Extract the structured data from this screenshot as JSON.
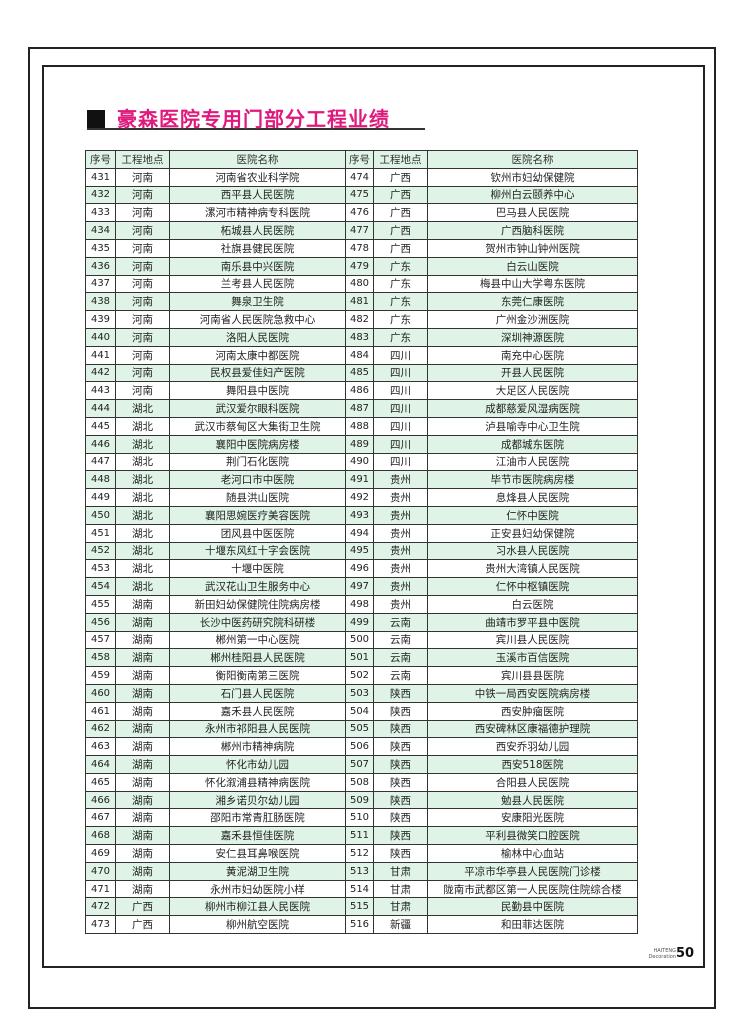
{
  "title": "豪森医院专用门部分工程业绩",
  "headers": [
    "序号",
    "工程地点",
    "医院名称",
    "序号",
    "工程地点",
    "医院名称"
  ],
  "left": [
    [
      "431",
      "河南",
      "河南省农业科学院"
    ],
    [
      "432",
      "河南",
      "西平县人民医院"
    ],
    [
      "433",
      "河南",
      "漯河市精神病专科医院"
    ],
    [
      "434",
      "河南",
      "柘城县人民医院"
    ],
    [
      "435",
      "河南",
      "社旗县健民医院"
    ],
    [
      "436",
      "河南",
      "南乐县中兴医院"
    ],
    [
      "437",
      "河南",
      "兰考县人民医院"
    ],
    [
      "438",
      "河南",
      "舞泉卫生院"
    ],
    [
      "439",
      "河南",
      "河南省人民医院急救中心"
    ],
    [
      "440",
      "河南",
      "洛阳人民医院"
    ],
    [
      "441",
      "河南",
      "河南太康中都医院"
    ],
    [
      "442",
      "河南",
      "民权县爱佳妇产医院"
    ],
    [
      "443",
      "河南",
      "舞阳县中医院"
    ],
    [
      "444",
      "湖北",
      "武汉爱尔眼科医院"
    ],
    [
      "445",
      "湖北",
      "武汉市蔡甸区大集街卫生院"
    ],
    [
      "446",
      "湖北",
      "襄阳中医院病房楼"
    ],
    [
      "447",
      "湖北",
      "荆门石化医院"
    ],
    [
      "448",
      "湖北",
      "老河口市中医院"
    ],
    [
      "449",
      "湖北",
      "随县洪山医院"
    ],
    [
      "450",
      "湖北",
      "襄阳思婉医疗美容医院"
    ],
    [
      "451",
      "湖北",
      "团风县中医医院"
    ],
    [
      "452",
      "湖北",
      "十堰东风红十字会医院"
    ],
    [
      "453",
      "湖北",
      "十堰中医院"
    ],
    [
      "454",
      "湖北",
      "武汉花山卫生服务中心"
    ],
    [
      "455",
      "湖南",
      "新田妇幼保健院住院病房楼"
    ],
    [
      "456",
      "湖南",
      "长沙中医药研究院科研楼"
    ],
    [
      "457",
      "湖南",
      "郴州第一中心医院"
    ],
    [
      "458",
      "湖南",
      "郴州桂阳县人民医院"
    ],
    [
      "459",
      "湖南",
      "衡阳衡南第三医院"
    ],
    [
      "460",
      "湖南",
      "石门县人民医院"
    ],
    [
      "461",
      "湖南",
      "嘉禾县人民医院"
    ],
    [
      "462",
      "湖南",
      "永州市祁阳县人民医院"
    ],
    [
      "463",
      "湖南",
      "郴州市精神病院"
    ],
    [
      "464",
      "湖南",
      "怀化市幼儿园"
    ],
    [
      "465",
      "湖南",
      "怀化溆浦县精神病医院"
    ],
    [
      "466",
      "湖南",
      "湘乡诺贝尔幼儿园"
    ],
    [
      "467",
      "湖南",
      "邵阳市常青肛肠医院"
    ],
    [
      "468",
      "湖南",
      "嘉禾县恒佳医院"
    ],
    [
      "469",
      "湖南",
      "安仁县耳鼻喉医院"
    ],
    [
      "470",
      "湖南",
      "黄泥湖卫生院"
    ],
    [
      "471",
      "湖南",
      "永州市妇幼医院小样"
    ],
    [
      "472",
      "广西",
      "柳州市柳江县人民医院"
    ],
    [
      "473",
      "广西",
      "柳州航空医院"
    ]
  ],
  "right": [
    [
      "474",
      "广西",
      "钦州市妇幼保健院"
    ],
    [
      "475",
      "广西",
      "柳州白云颐养中心"
    ],
    [
      "476",
      "广西",
      "巴马县人民医院"
    ],
    [
      "477",
      "广西",
      "广西脑科医院"
    ],
    [
      "478",
      "广西",
      "贺州市钟山钟州医院"
    ],
    [
      "479",
      "广东",
      "白云山医院"
    ],
    [
      "480",
      "广东",
      "梅县中山大学粤东医院"
    ],
    [
      "481",
      "广东",
      "东莞仁康医院"
    ],
    [
      "482",
      "广东",
      "广州金沙洲医院"
    ],
    [
      "483",
      "广东",
      "深圳神源医院"
    ],
    [
      "484",
      "四川",
      "南充中心医院"
    ],
    [
      "485",
      "四川",
      "开县人民医院"
    ],
    [
      "486",
      "四川",
      "大足区人民医院"
    ],
    [
      "487",
      "四川",
      "成都慈爱风湿病医院"
    ],
    [
      "488",
      "四川",
      "泸县喻寺中心卫生院"
    ],
    [
      "489",
      "四川",
      "成都城东医院"
    ],
    [
      "490",
      "四川",
      "江油市人民医院"
    ],
    [
      "491",
      "贵州",
      "毕节市医院病房楼"
    ],
    [
      "492",
      "贵州",
      "息烽县人民医院"
    ],
    [
      "493",
      "贵州",
      "仁怀中医院"
    ],
    [
      "494",
      "贵州",
      "正安县妇幼保健院"
    ],
    [
      "495",
      "贵州",
      "习水县人民医院"
    ],
    [
      "496",
      "贵州",
      "贵州大湾镇人民医院"
    ],
    [
      "497",
      "贵州",
      "仁怀中枢镇医院"
    ],
    [
      "498",
      "贵州",
      "白云医院"
    ],
    [
      "499",
      "云南",
      "曲靖市罗平县中医院"
    ],
    [
      "500",
      "云南",
      "宾川县人民医院"
    ],
    [
      "501",
      "云南",
      "玉溪市百信医院"
    ],
    [
      "502",
      "云南",
      "宾川县县医院"
    ],
    [
      "503",
      "陕西",
      "中铁一局西安医院病房楼"
    ],
    [
      "504",
      "陕西",
      "西安肿瘤医院"
    ],
    [
      "505",
      "陕西",
      "西安碑林区康福德护理院"
    ],
    [
      "506",
      "陕西",
      "西安乔羽幼儿园"
    ],
    [
      "507",
      "陕西",
      "西安518医院"
    ],
    [
      "508",
      "陕西",
      "合阳县人民医院"
    ],
    [
      "509",
      "陕西",
      "勉县人民医院"
    ],
    [
      "510",
      "陕西",
      "安康阳光医院"
    ],
    [
      "511",
      "陕西",
      "平利县微笑口腔医院"
    ],
    [
      "512",
      "陕西",
      "榆林中心血站"
    ],
    [
      "513",
      "甘肃",
      "平凉市华亭县人民医院门诊楼"
    ],
    [
      "514",
      "甘肃",
      "陇南市武都区第一人民医院住院综合楼"
    ],
    [
      "515",
      "甘肃",
      "民勤县中医院"
    ],
    [
      "516",
      "新疆",
      "和田菲达医院"
    ]
  ],
  "footer": {
    "brand_line1": "HAITENG",
    "brand_line2": "Decoration",
    "page_number": "50"
  },
  "colors": {
    "title": "#e0197d",
    "row_alt": "#dff3e6"
  }
}
